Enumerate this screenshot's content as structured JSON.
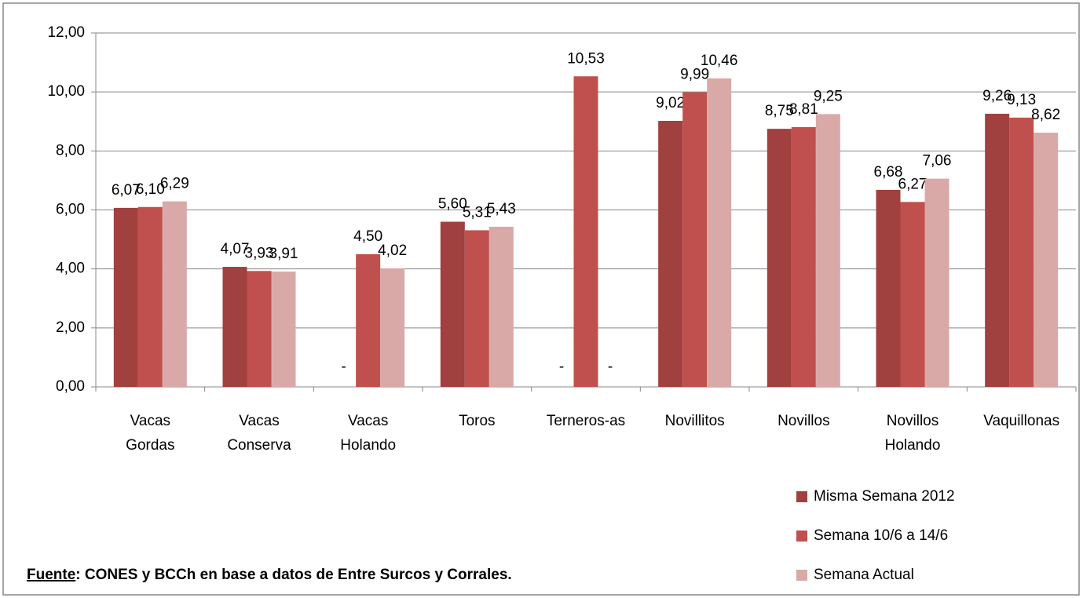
{
  "chart_data": {
    "type": "bar",
    "categories": [
      [
        "Vacas",
        "Gordas"
      ],
      [
        "Vacas",
        "Conserva"
      ],
      [
        "Vacas",
        "Holando"
      ],
      [
        "Toros"
      ],
      [
        "Terneros-as"
      ],
      [
        "Novillitos"
      ],
      [
        "Novillos"
      ],
      [
        "Novillos",
        "Holando"
      ],
      [
        "Vaquillonas"
      ]
    ],
    "series": [
      {
        "name": "Misma Semana 2012",
        "color": "#a0403f",
        "values": [
          6.07,
          4.07,
          null,
          5.6,
          null,
          9.02,
          8.75,
          6.68,
          9.26
        ],
        "value_labels": [
          "6,07",
          "4,07",
          "-",
          "5,60",
          "-",
          "9,02",
          "8,75",
          "6,68",
          "9,26"
        ]
      },
      {
        "name": "Semana 10/6 a 14/6",
        "color": "#c0504d",
        "values": [
          6.1,
          3.93,
          4.5,
          5.31,
          10.53,
          9.99,
          8.81,
          6.27,
          9.13
        ],
        "value_labels": [
          "6,10",
          "3,93",
          "4,50",
          "5,31",
          "10,53",
          "9,99",
          "8,81",
          "6,27",
          "9,13"
        ]
      },
      {
        "name": "Semana Actual",
        "color": "#d9a9a8",
        "values": [
          6.29,
          3.91,
          4.02,
          5.43,
          null,
          10.46,
          9.25,
          7.06,
          8.62
        ],
        "value_labels": [
          "6,29",
          "3,91",
          "4,02",
          "5,43",
          "-",
          "10,46",
          "9,25",
          "7,06",
          "8,62"
        ]
      }
    ],
    "ylim": [
      0,
      12
    ],
    "yticks": [
      {
        "value": 0,
        "label": "0,00"
      },
      {
        "value": 2,
        "label": "2,00"
      },
      {
        "value": 4,
        "label": "4,00"
      },
      {
        "value": 6,
        "label": "6,00"
      },
      {
        "value": 8,
        "label": "8,00"
      },
      {
        "value": 10,
        "label": "10,00"
      },
      {
        "value": 12,
        "label": "12,00"
      }
    ],
    "grid": true,
    "legend": "right",
    "source": {
      "label": "Fuente",
      "text": ": CONES y BCCh en base a datos de Entre Surcos y Corrales."
    }
  }
}
